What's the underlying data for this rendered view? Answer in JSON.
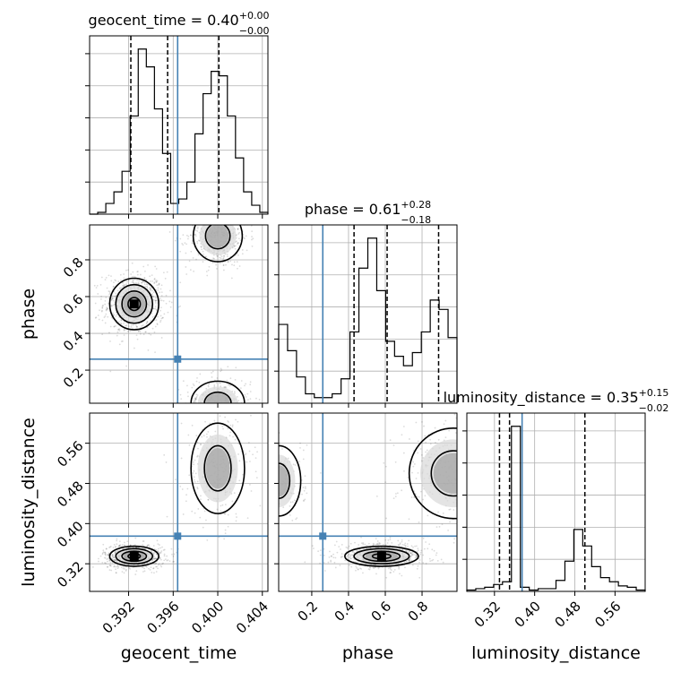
{
  "chart_data": {
    "type": "corner",
    "parameters": [
      {
        "name": "geocent_time",
        "label": "geocent_time",
        "range": [
          0.3885,
          0.4045
        ],
        "ticks": [
          0.392,
          0.396,
          0.4,
          0.404
        ],
        "tick_labels": [
          "0.392",
          "0.396",
          "0.400",
          "0.404"
        ],
        "truth": 0.3964
      },
      {
        "name": "phase",
        "label": "phase",
        "range": [
          0.02,
          0.99
        ],
        "ticks": [
          0.2,
          0.4,
          0.6,
          0.8
        ],
        "tick_labels": [
          "0.2",
          "0.4",
          "0.6",
          "0.8"
        ],
        "truth": 0.26
      },
      {
        "name": "luminosity_distance",
        "label": "luminosity_distance",
        "range": [
          0.265,
          0.62
        ],
        "ticks": [
          0.32,
          0.4,
          0.48,
          0.56
        ],
        "tick_labels": [
          "0.32",
          "0.40",
          "0.48",
          "0.56"
        ],
        "truth": 0.375
      }
    ],
    "titles": [
      {
        "base": "geocent_time = 0.40",
        "sup": "+0.00",
        "sub": "−0.00"
      },
      {
        "base": "phase = 0.61",
        "sup": "+0.28",
        "sub": "−0.18"
      },
      {
        "base": "luminosity_distance = 0.35",
        "sup": "+0.15",
        "sub": "−0.02"
      }
    ],
    "quantiles": [
      [
        0.3922,
        0.3955,
        0.4001
      ],
      [
        0.43,
        0.61,
        0.89
      ],
      [
        0.33,
        0.35,
        0.5
      ]
    ],
    "histograms": [
      {
        "edges_range": [
          0.3885,
          0.4045
        ],
        "counts": [
          0,
          2,
          12,
          25,
          48,
          110,
          185,
          165,
          118,
          68,
          12,
          17,
          36,
          90,
          135,
          160,
          155,
          110,
          63,
          25,
          10,
          2
        ]
      },
      {
        "edges_range": [
          0.02,
          0.99
        ],
        "counts": [
          42,
          28,
          14,
          5,
          3,
          3,
          5,
          13,
          38,
          72,
          88,
          60,
          33,
          25,
          20,
          27,
          38,
          55,
          50,
          35
        ]
      },
      {
        "edges_range": [
          0.265,
          0.62
        ],
        "counts": [
          1,
          2,
          3,
          5,
          7,
          120,
          3,
          1,
          2,
          2,
          8,
          22,
          45,
          33,
          18,
          10,
          7,
          4,
          3,
          1
        ]
      }
    ],
    "modes": [
      {
        "pair": [
          0,
          1
        ],
        "cx": 0.3925,
        "cy": 0.56,
        "sx": 0.0011,
        "sy": 0.07,
        "w": 1.0
      },
      {
        "pair": [
          0,
          1
        ],
        "cx": 0.4,
        "cy": 0.93,
        "sx": 0.0011,
        "sy": 0.07,
        "w": 0.7
      },
      {
        "pair": [
          0,
          1
        ],
        "cx": 0.4,
        "cy": 0.02,
        "sx": 0.0012,
        "sy": 0.06,
        "w": 0.5
      },
      {
        "pair": [
          0,
          2
        ],
        "cx": 0.3925,
        "cy": 0.335,
        "sx": 0.0011,
        "sy": 0.01,
        "w": 1.0
      },
      {
        "pair": [
          0,
          2
        ],
        "cx": 0.4,
        "cy": 0.51,
        "sx": 0.0012,
        "sy": 0.045,
        "w": 0.45
      },
      {
        "pair": [
          1,
          2
        ],
        "cx": 0.58,
        "cy": 0.335,
        "sx": 0.1,
        "sy": 0.01,
        "w": 1.0
      },
      {
        "pair": [
          1,
          2
        ],
        "cx": 0.97,
        "cy": 0.5,
        "sx": 0.12,
        "sy": 0.045,
        "w": 0.5
      },
      {
        "pair": [
          1,
          2
        ],
        "cx": 0.02,
        "cy": 0.485,
        "sx": 0.06,
        "sy": 0.035,
        "w": 0.25
      }
    ],
    "grid": true
  }
}
